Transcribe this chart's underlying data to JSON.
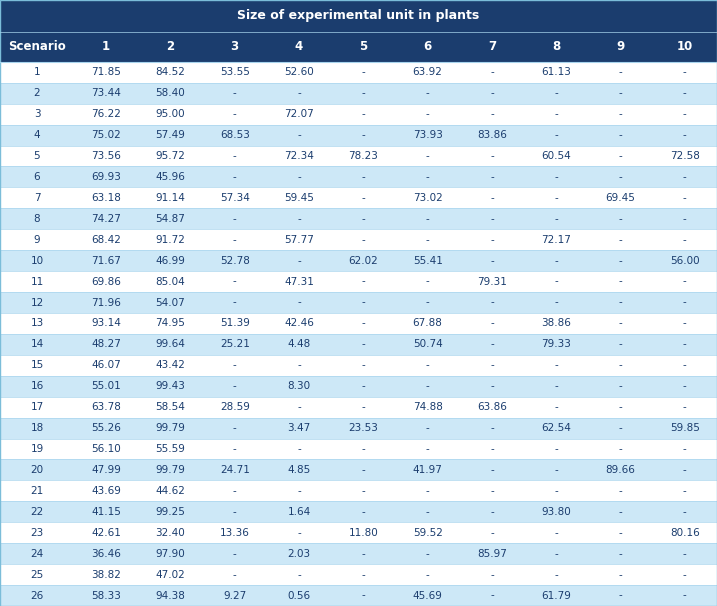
{
  "title": "Size of experimental unit in plants",
  "columns": [
    "Scenario",
    "1",
    "2",
    "3",
    "4",
    "5",
    "6",
    "7",
    "8",
    "9",
    "10"
  ],
  "rows": [
    [
      1,
      71.85,
      84.52,
      53.55,
      52.6,
      "-",
      63.92,
      "-",
      61.13,
      "-",
      "-"
    ],
    [
      2,
      73.44,
      58.4,
      "-",
      "-",
      "-",
      "-",
      "-",
      "-",
      "-",
      "-"
    ],
    [
      3,
      76.22,
      95.0,
      "-",
      72.07,
      "-",
      "-",
      "-",
      "-",
      "-",
      "-"
    ],
    [
      4,
      75.02,
      57.49,
      68.53,
      "-",
      "-",
      73.93,
      83.86,
      "-",
      "-",
      "-"
    ],
    [
      5,
      73.56,
      95.72,
      "-",
      72.34,
      78.23,
      "-",
      "-",
      60.54,
      "-",
      72.58
    ],
    [
      6,
      69.93,
      45.96,
      "-",
      "-",
      "-",
      "-",
      "-",
      "-",
      "-",
      "-"
    ],
    [
      7,
      63.18,
      91.14,
      57.34,
      59.45,
      "-",
      73.02,
      "-",
      "-",
      69.45,
      "-"
    ],
    [
      8,
      74.27,
      54.87,
      "-",
      "-",
      "-",
      "-",
      "-",
      "-",
      "-",
      "-"
    ],
    [
      9,
      68.42,
      91.72,
      "-",
      57.77,
      "-",
      "-",
      "-",
      72.17,
      "-",
      "-"
    ],
    [
      10,
      71.67,
      46.99,
      52.78,
      "-",
      62.02,
      55.41,
      "-",
      "-",
      "-",
      56.0
    ],
    [
      11,
      69.86,
      85.04,
      "-",
      47.31,
      "-",
      "-",
      79.31,
      "-",
      "-",
      "-"
    ],
    [
      12,
      71.96,
      54.07,
      "-",
      "-",
      "-",
      "-",
      "-",
      "-",
      "-",
      "-"
    ],
    [
      13,
      93.14,
      74.95,
      51.39,
      42.46,
      "-",
      67.88,
      "-",
      38.86,
      "-",
      "-"
    ],
    [
      14,
      48.27,
      99.64,
      25.21,
      4.48,
      "-",
      50.74,
      "-",
      79.33,
      "-",
      "-"
    ],
    [
      15,
      46.07,
      43.42,
      "-",
      "-",
      "-",
      "-",
      "-",
      "-",
      "-",
      "-"
    ],
    [
      16,
      55.01,
      99.43,
      "-",
      8.3,
      "-",
      "-",
      "-",
      "-",
      "-",
      "-"
    ],
    [
      17,
      63.78,
      58.54,
      28.59,
      "-",
      "-",
      74.88,
      63.86,
      "-",
      "-",
      "-"
    ],
    [
      18,
      55.26,
      99.79,
      "-",
      3.47,
      23.53,
      "-",
      "-",
      62.54,
      "-",
      59.85
    ],
    [
      19,
      56.1,
      55.59,
      "-",
      "-",
      "-",
      "-",
      "-",
      "-",
      "-",
      "-"
    ],
    [
      20,
      47.99,
      99.79,
      24.71,
      4.85,
      "-",
      41.97,
      "-",
      "-",
      89.66,
      "-"
    ],
    [
      21,
      43.69,
      44.62,
      "-",
      "-",
      "-",
      "-",
      "-",
      "-",
      "-",
      "-"
    ],
    [
      22,
      41.15,
      99.25,
      "-",
      1.64,
      "-",
      "-",
      "-",
      93.8,
      "-",
      "-"
    ],
    [
      23,
      42.61,
      32.4,
      13.36,
      "-",
      11.8,
      59.52,
      "-",
      "-",
      "-",
      80.16
    ],
    [
      24,
      36.46,
      97.9,
      "-",
      2.03,
      "-",
      "-",
      85.97,
      "-",
      "-",
      "-"
    ],
    [
      25,
      38.82,
      47.02,
      "-",
      "-",
      "-",
      "-",
      "-",
      "-",
      "-",
      "-"
    ],
    [
      26,
      58.33,
      94.38,
      9.27,
      0.56,
      "-",
      45.69,
      "-",
      61.79,
      "-",
      "-"
    ]
  ],
  "header_bg": "#1b3d6e",
  "header_fg": "#ffffff",
  "row_white_bg": "#ffffff",
  "row_blue_bg": "#cde8f7",
  "row_fg": "#1b3d6e",
  "divider_color": "#a8d4ed",
  "outer_border_color": "#7bbdd9",
  "title_fontsize": 9.0,
  "header_fontsize": 8.5,
  "data_fontsize": 7.5,
  "col_w_ratios": [
    1.15,
    1.0,
    1.0,
    1.0,
    1.0,
    1.0,
    1.0,
    1.0,
    1.0,
    1.0,
    1.0
  ]
}
